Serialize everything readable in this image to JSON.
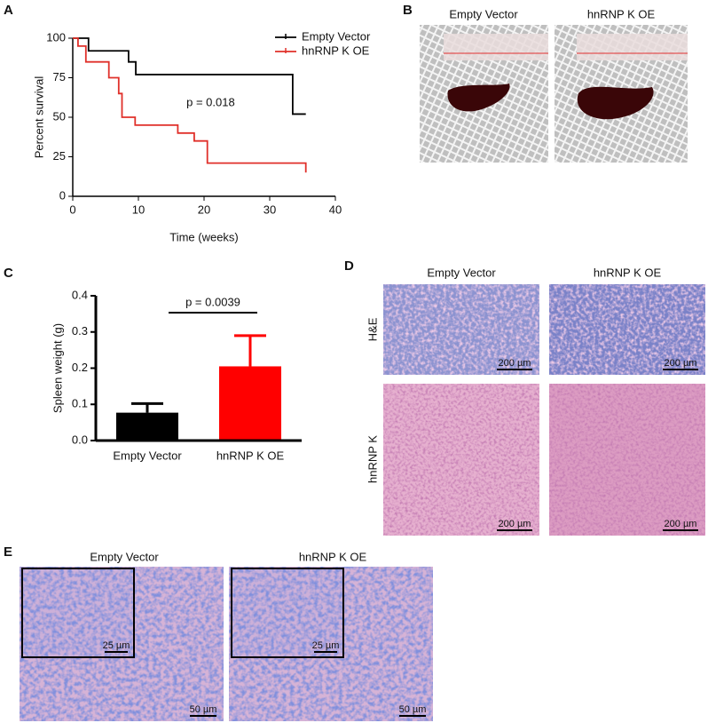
{
  "chart_data": [
    {
      "type": "step",
      "label": "A",
      "x_label": "Time (weeks)",
      "y_label": "Percent survival",
      "xlim": [
        0,
        40
      ],
      "xticks": [
        0,
        10,
        20,
        30,
        40
      ],
      "ylim": [
        0,
        100
      ],
      "yticks": [
        0,
        25,
        50,
        75,
        100
      ],
      "annotation": "p = 0.018",
      "legend": "upper right",
      "series": [
        {
          "name": "Empty Vector",
          "color": "#000000",
          "x": [
            0,
            2.4,
            8.5,
            9.6,
            33.5,
            35.5
          ],
          "values": [
            100,
            92,
            85,
            77,
            52,
            52
          ]
        },
        {
          "name": "hnRNP K OE",
          "color": "#e0302a",
          "x": [
            0,
            0.8,
            2,
            5.5,
            7,
            7.5,
            9.5,
            16,
            18.5,
            20.5,
            35.5
          ],
          "values": [
            100,
            95,
            85,
            75,
            65,
            50,
            45,
            40,
            35,
            21,
            15
          ]
        }
      ]
    },
    {
      "type": "bar",
      "label": "C",
      "y_label": "Spleen weight (g)",
      "categories": [
        "Empty Vector",
        "hnRNP K OE"
      ],
      "values": [
        0.077,
        0.205
      ],
      "errors": [
        0.025,
        0.085
      ],
      "colors": [
        "#000000",
        "#ff0000"
      ],
      "ylim": [
        0,
        0.4
      ],
      "yticks": [
        {
          "value": 0,
          "label": "0.0"
        },
        0.1,
        0.2,
        0.3,
        0.4
      ],
      "annotation": "p = 0.0039"
    }
  ],
  "panel_b": {
    "label": "B",
    "columns": [
      "Empty Vector",
      "hnRNP K OE"
    ]
  },
  "panel_d": {
    "label": "D",
    "columns": [
      "Empty Vector",
      "hnRNP K OE"
    ],
    "rows": [
      "H&E",
      "hnRNP K"
    ],
    "scale_bars": [
      [
        "200 µm",
        "200 µm"
      ],
      [
        "200 µm",
        "200 µm"
      ]
    ]
  },
  "panel_e": {
    "label": "E",
    "columns": [
      "Empty Vector",
      "hnRNP K OE"
    ],
    "inset_scale_bars": [
      "25 µm",
      "25 µm"
    ],
    "scale_bars": [
      "50 µm",
      "50 µm"
    ]
  }
}
